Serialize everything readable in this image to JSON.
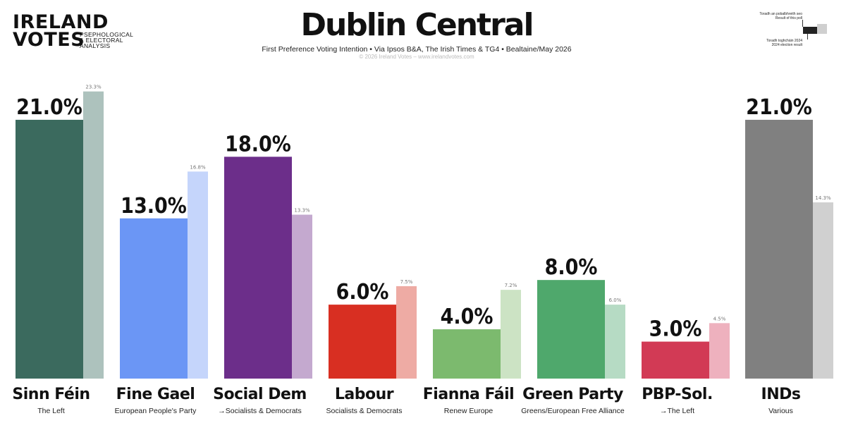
{
  "logo": {
    "line1": "IRELAND",
    "line2": "VOTES",
    "tag1": "PSEPHOLOGICAL",
    "tag2": "& ELECTORAL",
    "tag3": "ANALYSIS"
  },
  "header": {
    "title": "Dublin Central",
    "subtitle": "First Preference Voting Intention • Via Ipsos B&A, The Irish Times & TG4 • Bealtaine/May 2026",
    "credit": "© 2026 Ireland Votes – www.irelandvotes.com"
  },
  "legend": {
    "poll_label_1": "Toradh an pobalbhreith seo",
    "poll_label_2": "Result of this poll",
    "prev_label_1": "Toradh toghcháin 2024",
    "prev_label_2": "2024 election result"
  },
  "chart_data": {
    "type": "bar",
    "title": "Dublin Central",
    "ylim": [
      0,
      25
    ],
    "grid": false,
    "legend_position": "top-right",
    "categories": [
      "Sinn Féin",
      "Fine Gael",
      "Social Dem",
      "Labour",
      "Fianna Fáil",
      "Green Party",
      "PBP-Sol.",
      "INDs"
    ],
    "groups": [
      "The Left",
      "European People's Party",
      "→Socialists & Democrats",
      "Socialists & Democrats",
      "Renew Europe",
      "Greens/European Free Alliance",
      "→The Left",
      "Various"
    ],
    "series": [
      {
        "name": "Result of this poll",
        "values": [
          21.0,
          13.0,
          18.0,
          6.0,
          4.0,
          8.0,
          3.0,
          21.0
        ]
      },
      {
        "name": "2024 election result",
        "values": [
          23.3,
          16.8,
          13.3,
          7.5,
          7.2,
          6.0,
          4.5,
          14.3
        ]
      }
    ],
    "labels_current": [
      "21.0%",
      "13.0%",
      "18.0%",
      "6.0%",
      "4.0%",
      "8.0%",
      "3.0%",
      "21.0%"
    ],
    "labels_previous": [
      "23.3%",
      "16.8%",
      "13.3%",
      "7.5%",
      "7.2%",
      "6.0%",
      "4.5%",
      "14.3%"
    ],
    "colors_current": [
      "#3b6a5e",
      "#6b96f5",
      "#6c2e8a",
      "#d82f22",
      "#7cba6e",
      "#4fa86c",
      "#d23a55",
      "#808080"
    ],
    "colors_previous": [
      "#adc2bd",
      "#c5d5fb",
      "#c4a9cf",
      "#eeaba4",
      "#cce3c4",
      "#b6dbc4",
      "#eeb1be",
      "#d0d0d0"
    ]
  }
}
